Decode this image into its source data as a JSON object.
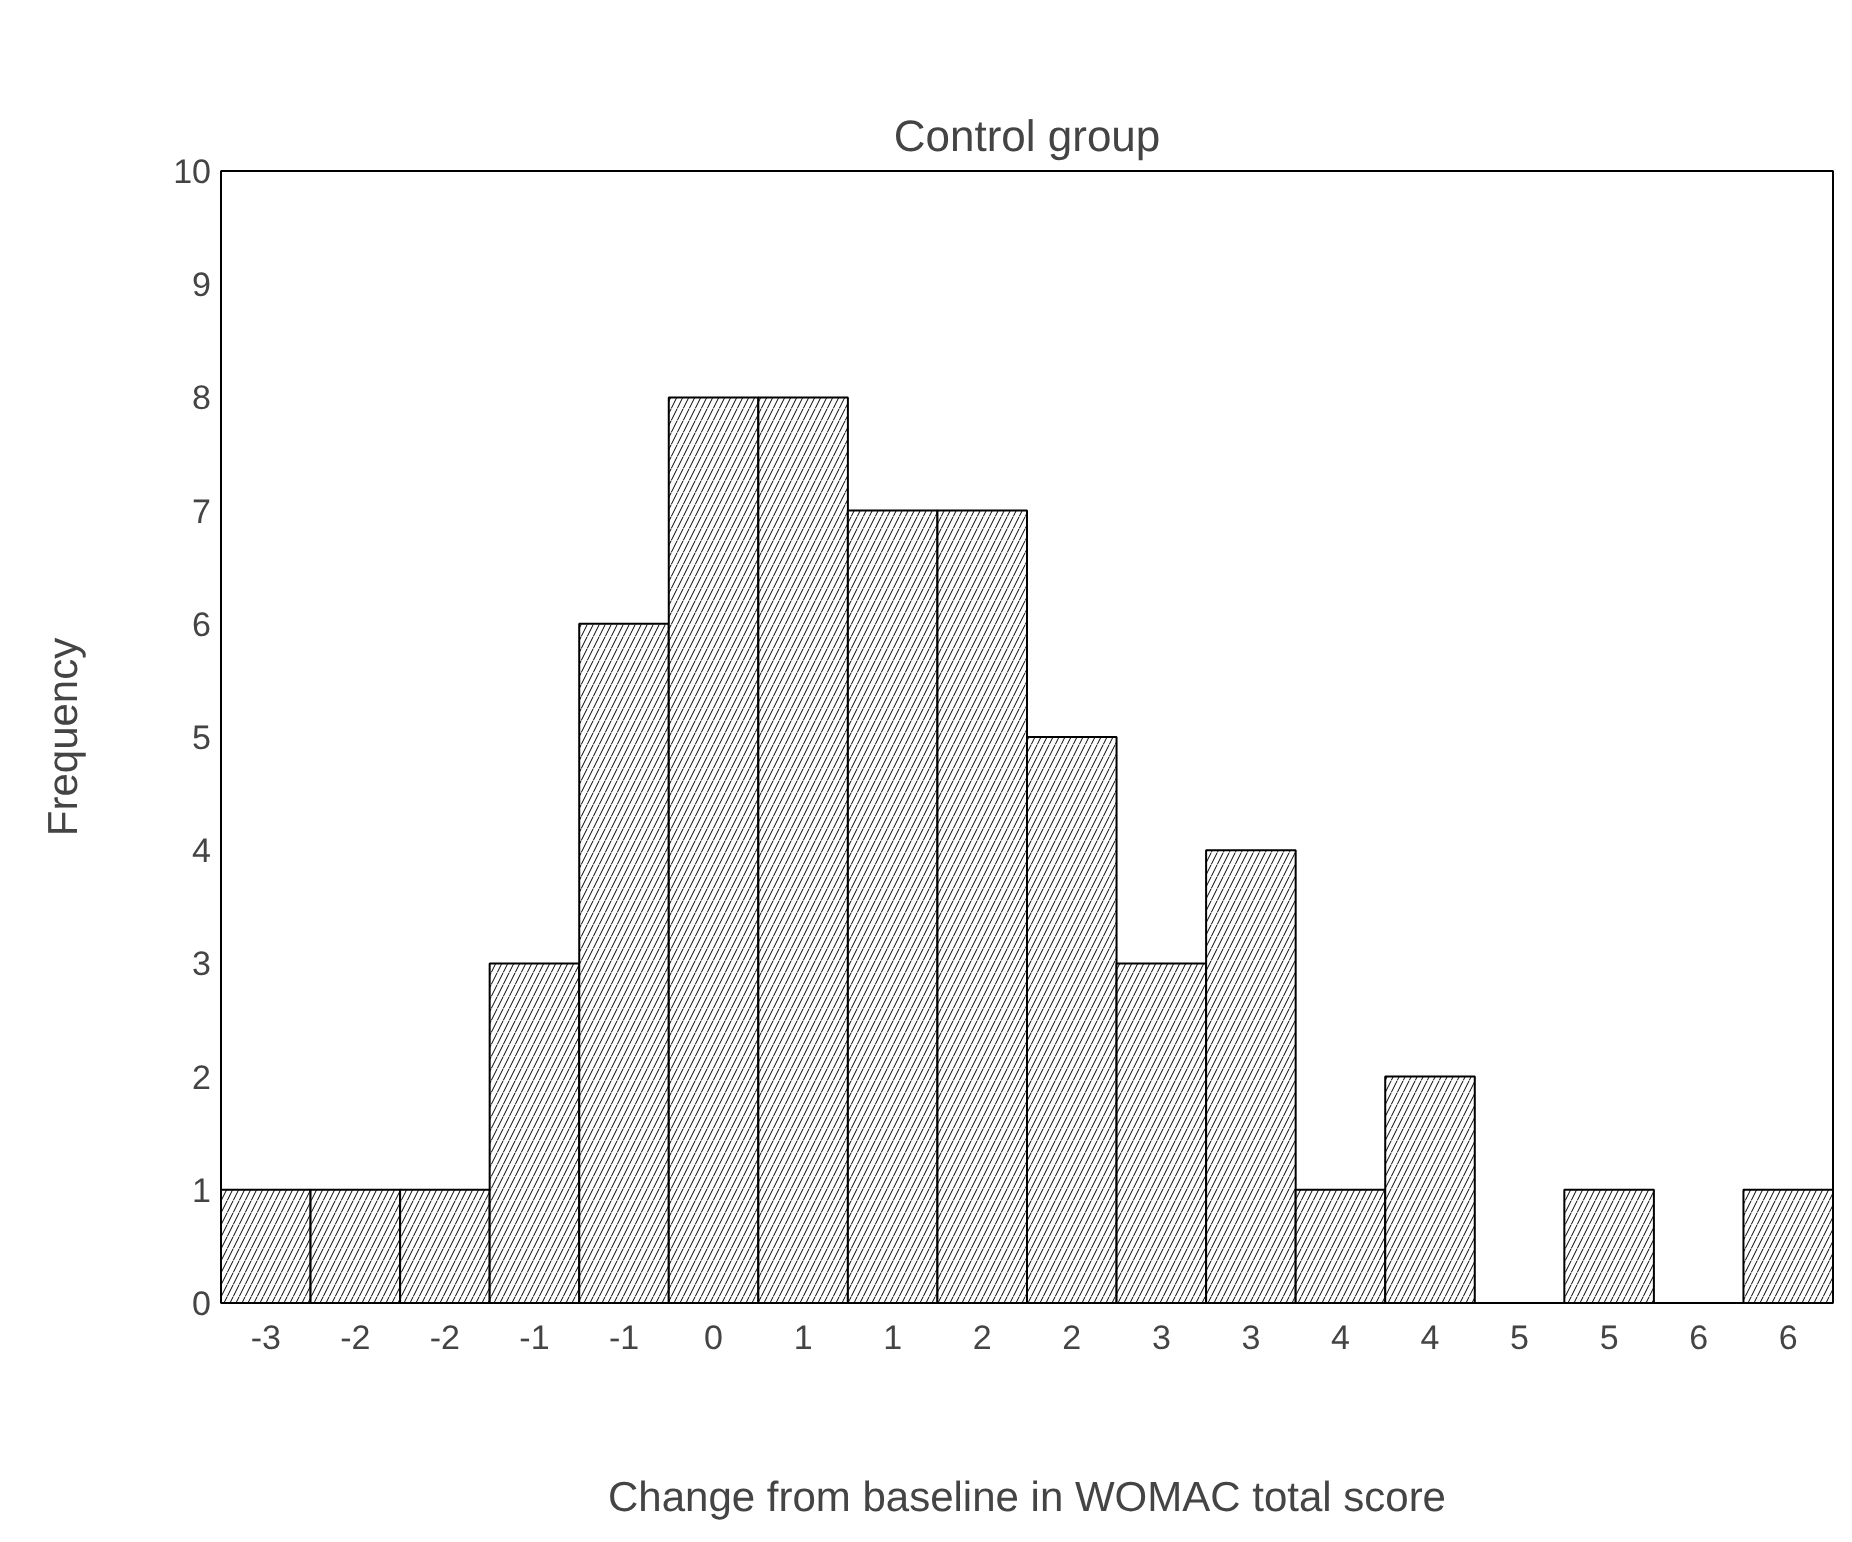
{
  "chart_data": {
    "type": "bar",
    "title": "Control group",
    "xlabel": "Change from baseline in WOMAC total score",
    "ylabel": "Frequency",
    "categories": [
      "-3",
      "-2",
      "-2",
      "-1",
      "-1",
      "0",
      "1",
      "1",
      "2",
      "2",
      "3",
      "3",
      "4",
      "4",
      "5",
      "5",
      "6",
      "6"
    ],
    "values": [
      1,
      1,
      1,
      3,
      6,
      8,
      8,
      7,
      7,
      5,
      3,
      4,
      1,
      2,
      0,
      1,
      0,
      1
    ],
    "color": "#000000",
    "ylim": [
      0,
      10
    ],
    "yticks": [
      0,
      1,
      2,
      3,
      4,
      5,
      6,
      7,
      8,
      9,
      10
    ],
    "grid": false
  }
}
